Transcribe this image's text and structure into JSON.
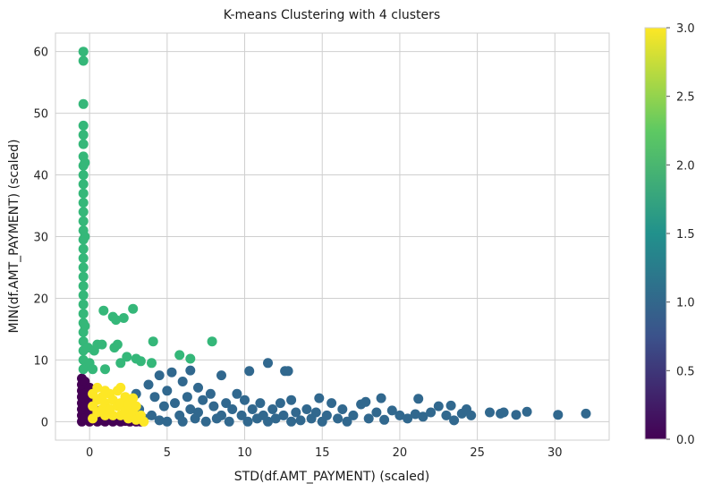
{
  "chart_data": {
    "type": "scatter",
    "title": "K-means Clustering with 4 clusters",
    "xlabel": "STD(df.AMT_PAYMENT) (scaled)",
    "ylabel": "MIN(df.AMT_PAYMENT) (scaled)",
    "xlim": [
      -2.2,
      33.5
    ],
    "ylim": [
      -3.0,
      63.0
    ],
    "xticks": [
      0,
      5,
      10,
      15,
      20,
      25,
      30
    ],
    "yticks": [
      0,
      10,
      20,
      30,
      40,
      50,
      60
    ],
    "grid": true,
    "legend": "none",
    "colorbar": {
      "label": "",
      "range": [
        0.0,
        3.0
      ],
      "ticks": [
        "0.0",
        "0.5",
        "1.0",
        "1.5",
        "2.0",
        "2.5",
        "3.0"
      ],
      "colormap": "viridis",
      "stops": [
        "#440154",
        "#3b528b",
        "#21918c",
        "#5ec962",
        "#fde725"
      ]
    },
    "series": [
      {
        "cluster": 0,
        "color": "#440154",
        "points": [
          [
            -0.5,
            0.0
          ],
          [
            -0.5,
            1.0
          ],
          [
            -0.5,
            2.0
          ],
          [
            -0.5,
            3.0
          ],
          [
            -0.5,
            4.0
          ],
          [
            -0.5,
            5.0
          ],
          [
            -0.5,
            6.0
          ],
          [
            -0.5,
            7.0
          ],
          [
            -0.3,
            0.5
          ],
          [
            -0.3,
            2.5
          ],
          [
            -0.3,
            4.5
          ],
          [
            -0.3,
            6.5
          ],
          [
            0.0,
            0.0
          ],
          [
            0.0,
            1.5
          ],
          [
            0.0,
            3.5
          ],
          [
            0.0,
            5.5
          ],
          [
            0.3,
            0.3
          ],
          [
            0.3,
            2.0
          ],
          [
            0.5,
            0.0
          ],
          [
            0.5,
            1.0
          ],
          [
            0.8,
            0.2
          ],
          [
            0.8,
            0.8
          ],
          [
            1.0,
            0.0
          ],
          [
            1.2,
            0.3
          ],
          [
            1.5,
            0.0
          ],
          [
            1.8,
            0.2
          ],
          [
            2.0,
            0.0
          ],
          [
            2.3,
            0.1
          ],
          [
            2.6,
            0.0
          ],
          [
            3.0,
            0.0
          ],
          [
            3.3,
            0.0
          ]
        ]
      },
      {
        "cluster": 1,
        "color": "#31688e",
        "points": [
          [
            2.5,
            3.3
          ],
          [
            3.0,
            4.5
          ],
          [
            3.2,
            2.0
          ],
          [
            3.5,
            0.5
          ],
          [
            3.8,
            6.0
          ],
          [
            4.0,
            1.0
          ],
          [
            4.2,
            4.0
          ],
          [
            4.5,
            7.5
          ],
          [
            4.5,
            0.2
          ],
          [
            4.8,
            2.5
          ],
          [
            5.0,
            5.0
          ],
          [
            5.0,
            0.0
          ],
          [
            5.3,
            8.0
          ],
          [
            5.5,
            3.0
          ],
          [
            5.8,
            1.0
          ],
          [
            6.0,
            6.5
          ],
          [
            6.0,
            0.0
          ],
          [
            6.3,
            4.0
          ],
          [
            6.5,
            8.3
          ],
          [
            6.5,
            2.0
          ],
          [
            6.8,
            0.5
          ],
          [
            7.0,
            5.5
          ],
          [
            7.0,
            1.5
          ],
          [
            7.3,
            3.5
          ],
          [
            7.5,
            0.0
          ],
          [
            7.8,
            4.5
          ],
          [
            8.0,
            2.5
          ],
          [
            8.2,
            0.5
          ],
          [
            8.5,
            7.5
          ],
          [
            8.5,
            1.0
          ],
          [
            8.8,
            3.0
          ],
          [
            9.0,
            0.0
          ],
          [
            9.2,
            2.0
          ],
          [
            9.5,
            4.5
          ],
          [
            9.8,
            1.0
          ],
          [
            10.0,
            3.5
          ],
          [
            10.2,
            0.0
          ],
          [
            10.3,
            8.2
          ],
          [
            10.5,
            2.0
          ],
          [
            10.8,
            0.5
          ],
          [
            11.0,
            3.0
          ],
          [
            11.2,
            1.0
          ],
          [
            11.5,
            9.5
          ],
          [
            11.5,
            0.0
          ],
          [
            11.8,
            2.0
          ],
          [
            12.0,
            0.5
          ],
          [
            12.3,
            3.0
          ],
          [
            12.5,
            1.0
          ],
          [
            12.6,
            8.2
          ],
          [
            12.8,
            8.2
          ],
          [
            13.0,
            0.0
          ],
          [
            13.0,
            3.5
          ],
          [
            13.3,
            1.5
          ],
          [
            13.6,
            0.2
          ],
          [
            14.0,
            2.0
          ],
          [
            14.3,
            0.5
          ],
          [
            14.6,
            1.5
          ],
          [
            14.8,
            3.8
          ],
          [
            15.0,
            0.0
          ],
          [
            15.3,
            1.0
          ],
          [
            15.6,
            3.0
          ],
          [
            16.0,
            0.5
          ],
          [
            16.3,
            2.0
          ],
          [
            16.6,
            0.0
          ],
          [
            17.0,
            1.0
          ],
          [
            17.5,
            2.8
          ],
          [
            17.8,
            3.2
          ],
          [
            18.0,
            0.5
          ],
          [
            18.5,
            1.5
          ],
          [
            18.8,
            3.8
          ],
          [
            19.0,
            0.3
          ],
          [
            19.5,
            1.8
          ],
          [
            20.0,
            1.0
          ],
          [
            20.5,
            0.5
          ],
          [
            21.0,
            1.2
          ],
          [
            21.2,
            3.7
          ],
          [
            21.5,
            0.8
          ],
          [
            22.0,
            1.5
          ],
          [
            22.5,
            2.5
          ],
          [
            23.0,
            1.0
          ],
          [
            23.3,
            2.6
          ],
          [
            23.5,
            0.2
          ],
          [
            24.0,
            1.3
          ],
          [
            24.3,
            2.0
          ],
          [
            24.6,
            1.0
          ],
          [
            25.8,
            1.5
          ],
          [
            26.5,
            1.3
          ],
          [
            26.7,
            1.5
          ],
          [
            27.5,
            1.1
          ],
          [
            28.2,
            1.6
          ],
          [
            30.2,
            1.1
          ],
          [
            32.0,
            1.3
          ]
        ]
      },
      {
        "cluster": 2,
        "color": "#35b779",
        "points": [
          [
            -0.4,
            60.0
          ],
          [
            -0.4,
            58.5
          ],
          [
            -0.4,
            51.5
          ],
          [
            -0.4,
            48.0
          ],
          [
            -0.4,
            46.5
          ],
          [
            -0.4,
            45.0
          ],
          [
            -0.4,
            43.0
          ],
          [
            -0.4,
            41.5
          ],
          [
            -0.4,
            40.0
          ],
          [
            -0.4,
            38.5
          ],
          [
            -0.4,
            37.0
          ],
          [
            -0.4,
            35.5
          ],
          [
            -0.4,
            34.0
          ],
          [
            -0.4,
            32.5
          ],
          [
            -0.4,
            31.0
          ],
          [
            -0.4,
            29.5
          ],
          [
            -0.4,
            28.0
          ],
          [
            -0.4,
            26.5
          ],
          [
            -0.4,
            25.0
          ],
          [
            -0.4,
            23.5
          ],
          [
            -0.4,
            22.0
          ],
          [
            -0.4,
            20.5
          ],
          [
            -0.4,
            19.0
          ],
          [
            -0.4,
            17.5
          ],
          [
            -0.4,
            16.0
          ],
          [
            -0.4,
            14.5
          ],
          [
            -0.4,
            13.0
          ],
          [
            -0.4,
            11.5
          ],
          [
            -0.4,
            10.0
          ],
          [
            -0.4,
            8.5
          ],
          [
            -0.3,
            42.0
          ],
          [
            -0.3,
            30.0
          ],
          [
            -0.3,
            15.5
          ],
          [
            -0.1,
            12.0
          ],
          [
            0.0,
            9.5
          ],
          [
            0.2,
            8.5
          ],
          [
            0.3,
            11.5
          ],
          [
            0.5,
            12.5
          ],
          [
            0.8,
            12.5
          ],
          [
            0.9,
            18.0
          ],
          [
            1.0,
            8.5
          ],
          [
            1.5,
            17.0
          ],
          [
            1.6,
            12.0
          ],
          [
            1.7,
            16.5
          ],
          [
            1.8,
            12.5
          ],
          [
            2.2,
            16.8
          ],
          [
            2.0,
            9.5
          ],
          [
            2.4,
            10.5
          ],
          [
            2.8,
            18.3
          ],
          [
            3.0,
            10.2
          ],
          [
            3.3,
            9.8
          ],
          [
            4.1,
            13.0
          ],
          [
            4.0,
            9.5
          ],
          [
            5.8,
            10.8
          ],
          [
            6.5,
            10.2
          ],
          [
            7.9,
            13.0
          ]
        ]
      },
      {
        "cluster": 3,
        "color": "#fde725",
        "points": [
          [
            0.2,
            0.5
          ],
          [
            0.2,
            2.5
          ],
          [
            0.2,
            4.5
          ],
          [
            0.5,
            1.5
          ],
          [
            0.5,
            3.5
          ],
          [
            0.5,
            5.5
          ],
          [
            0.8,
            2.0
          ],
          [
            0.8,
            4.0
          ],
          [
            1.0,
            1.0
          ],
          [
            1.0,
            3.0
          ],
          [
            1.0,
            5.0
          ],
          [
            1.3,
            2.0
          ],
          [
            1.3,
            4.5
          ],
          [
            1.5,
            1.0
          ],
          [
            1.5,
            3.5
          ],
          [
            1.8,
            2.5
          ],
          [
            1.8,
            5.0
          ],
          [
            2.0,
            1.0
          ],
          [
            2.0,
            3.0
          ],
          [
            2.0,
            5.5
          ],
          [
            2.3,
            1.8
          ],
          [
            2.3,
            4.0
          ],
          [
            2.5,
            0.5
          ],
          [
            2.5,
            2.8
          ],
          [
            2.8,
            1.5
          ],
          [
            2.8,
            3.8
          ],
          [
            3.0,
            0.3
          ],
          [
            3.0,
            2.5
          ],
          [
            3.3,
            1.0
          ],
          [
            3.5,
            0.0
          ]
        ]
      }
    ]
  }
}
